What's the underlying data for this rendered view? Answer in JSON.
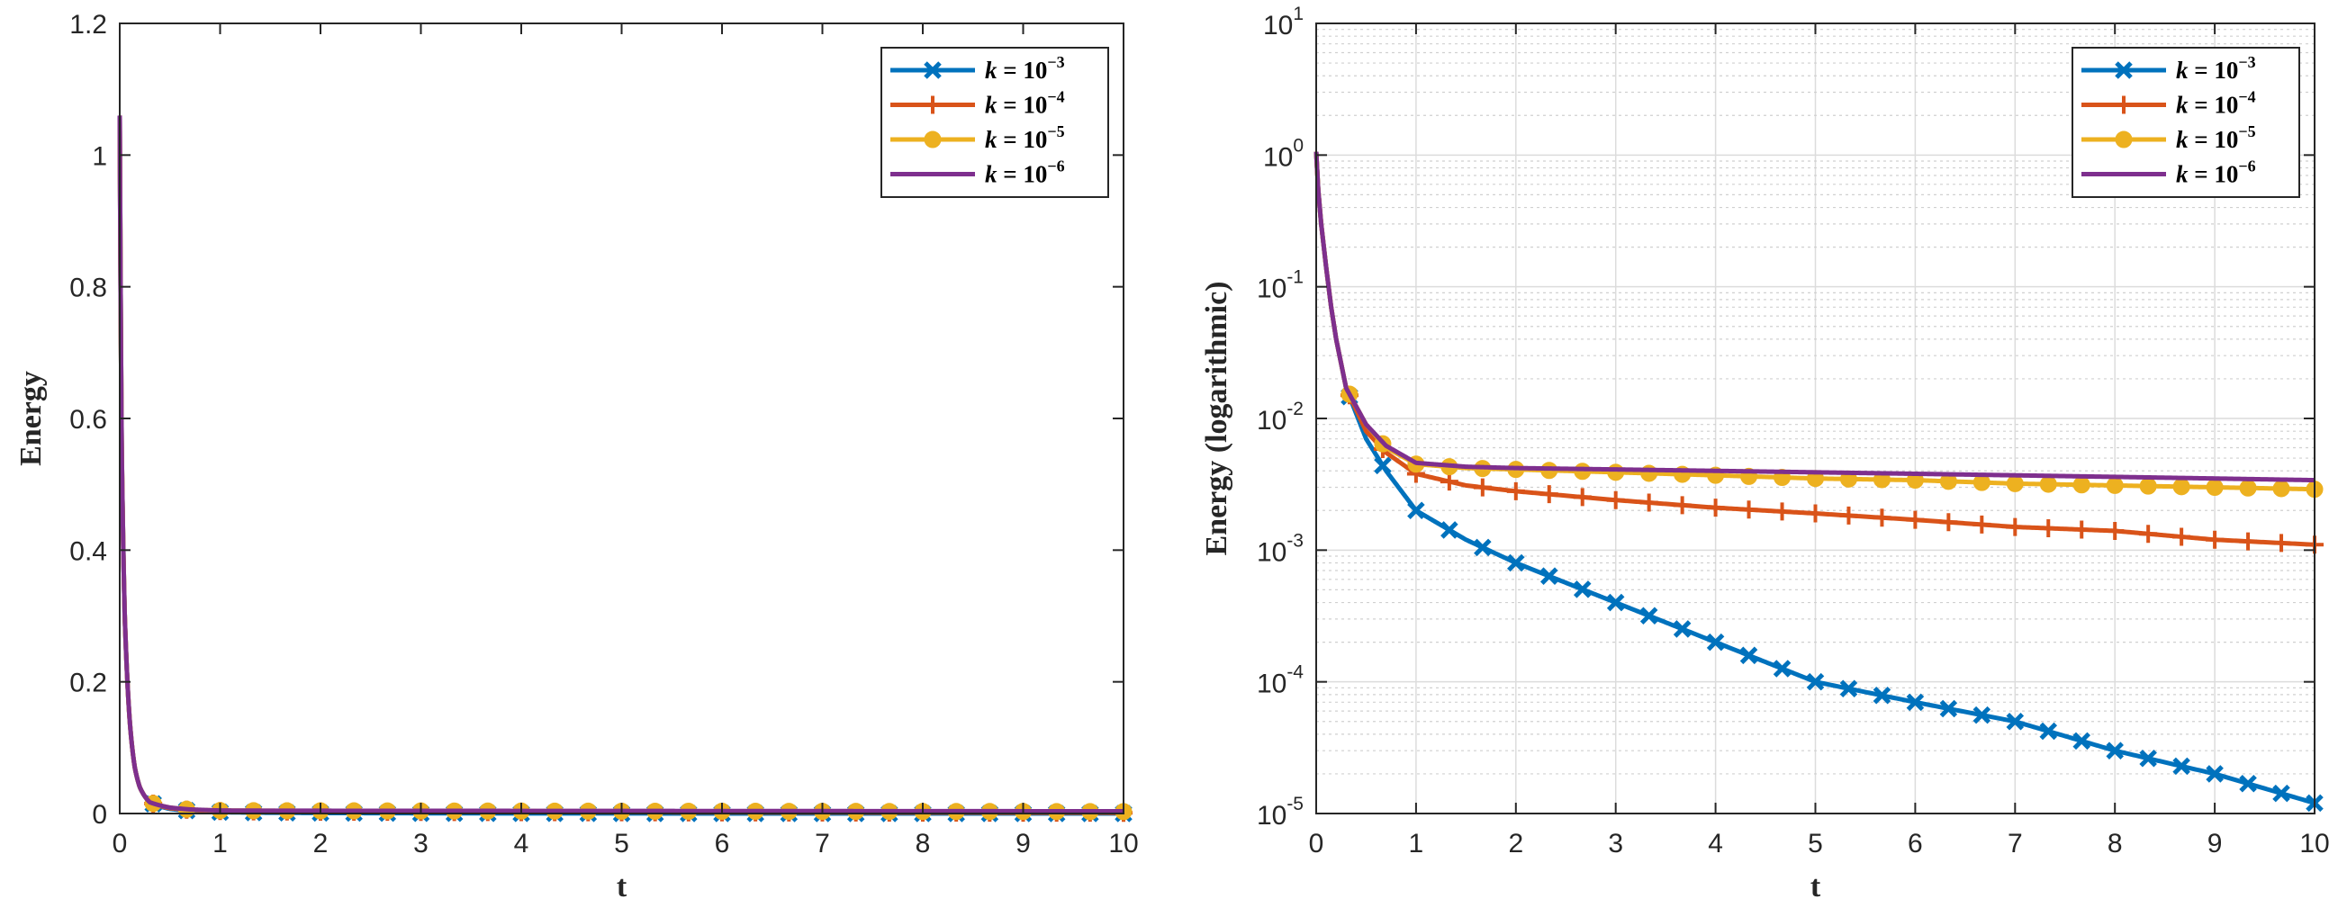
{
  "colors": {
    "k1e-3": "#0072BD",
    "k1e-4": "#D95319",
    "k1e-5": "#EDB120",
    "k1e-6": "#7E2F8E"
  },
  "chart_data": [
    {
      "type": "line",
      "panel": "left",
      "title": "",
      "xlabel": "t",
      "ylabel": "Energy",
      "xlim": [
        0,
        10
      ],
      "ylim": [
        0,
        1.2
      ],
      "yscale": "linear",
      "grid": false,
      "legend_location": "top-right",
      "xticks": [
        "0",
        "1",
        "2",
        "3",
        "4",
        "5",
        "6",
        "7",
        "8",
        "9",
        "10"
      ],
      "yticks": [
        "0",
        "0.2",
        "0.4",
        "0.6",
        "0.8",
        "1",
        "1.2"
      ],
      "series": [
        {
          "key": "k1e-3",
          "legend_base": "k = 10",
          "legend_exp": "−3",
          "marker": "x",
          "color_key": "k1e-3",
          "x": [
            0,
            0.02,
            0.05,
            0.1,
            0.15,
            0.2,
            0.3,
            0.5,
            0.7,
            1,
            1.5,
            2,
            3,
            4,
            5,
            6,
            7,
            8,
            9,
            10
          ],
          "y": [
            1.06,
            0.55,
            0.3,
            0.14,
            0.07,
            0.04,
            0.017,
            0.007,
            0.004,
            0.002,
            0.0012,
            0.0008,
            0.0004,
            0.0002,
            0.0001,
            7e-05,
            5e-05,
            3e-05,
            2e-05,
            1.2e-05
          ]
        },
        {
          "key": "k1e-4",
          "legend_base": "k = 10",
          "legend_exp": "−4",
          "marker": "+",
          "color_key": "k1e-4",
          "x": [
            0,
            0.02,
            0.05,
            0.1,
            0.15,
            0.2,
            0.3,
            0.5,
            0.7,
            1,
            1.5,
            2,
            3,
            4,
            5,
            6,
            7,
            8,
            9,
            10
          ],
          "y": [
            1.06,
            0.55,
            0.3,
            0.14,
            0.07,
            0.04,
            0.017,
            0.008,
            0.0055,
            0.0038,
            0.0031,
            0.0028,
            0.0024,
            0.0021,
            0.0019,
            0.0017,
            0.0015,
            0.0014,
            0.0012,
            0.0011
          ]
        },
        {
          "key": "k1e-5",
          "legend_base": "k = 10",
          "legend_exp": "−5",
          "marker": "o",
          "color_key": "k1e-5",
          "x": [
            0,
            0.02,
            0.05,
            0.1,
            0.15,
            0.2,
            0.3,
            0.5,
            0.7,
            1,
            1.5,
            2,
            3,
            4,
            5,
            6,
            7,
            8,
            9,
            10
          ],
          "y": [
            1.06,
            0.55,
            0.3,
            0.14,
            0.07,
            0.04,
            0.017,
            0.009,
            0.006,
            0.0045,
            0.0042,
            0.0041,
            0.0039,
            0.0037,
            0.0035,
            0.0034,
            0.0032,
            0.0031,
            0.003,
            0.0029
          ]
        },
        {
          "key": "k1e-6",
          "legend_base": "k = 10",
          "legend_exp": "−6",
          "marker": "none",
          "color_key": "k1e-6",
          "x": [
            0,
            0.02,
            0.05,
            0.1,
            0.15,
            0.2,
            0.3,
            0.5,
            0.7,
            1,
            1.5,
            2,
            3,
            4,
            5,
            6,
            7,
            8,
            9,
            10
          ],
          "y": [
            1.06,
            0.55,
            0.3,
            0.14,
            0.07,
            0.04,
            0.017,
            0.009,
            0.0062,
            0.0046,
            0.0043,
            0.0042,
            0.0041,
            0.004,
            0.0039,
            0.0038,
            0.0037,
            0.0036,
            0.0035,
            0.0034
          ]
        }
      ]
    },
    {
      "type": "line",
      "panel": "right",
      "title": "",
      "xlabel": "t",
      "ylabel": "Energy (logarithmic)",
      "xlim": [
        0,
        10
      ],
      "ylim": [
        1e-05,
        10
      ],
      "yscale": "log",
      "grid": true,
      "legend_location": "top-right",
      "xticks": [
        "0",
        "1",
        "2",
        "3",
        "4",
        "5",
        "6",
        "7",
        "8",
        "9",
        "10"
      ],
      "yticks": [
        {
          "base": "10",
          "exp": "-5",
          "value": 1e-05
        },
        {
          "base": "10",
          "exp": "-4",
          "value": 0.0001
        },
        {
          "base": "10",
          "exp": "-3",
          "value": 0.001
        },
        {
          "base": "10",
          "exp": "-2",
          "value": 0.01
        },
        {
          "base": "10",
          "exp": "-1",
          "value": 0.1
        },
        {
          "base": "10",
          "exp": "0",
          "value": 1
        },
        {
          "base": "10",
          "exp": "1",
          "value": 10
        }
      ],
      "series_ref": "same as left panel"
    }
  ]
}
